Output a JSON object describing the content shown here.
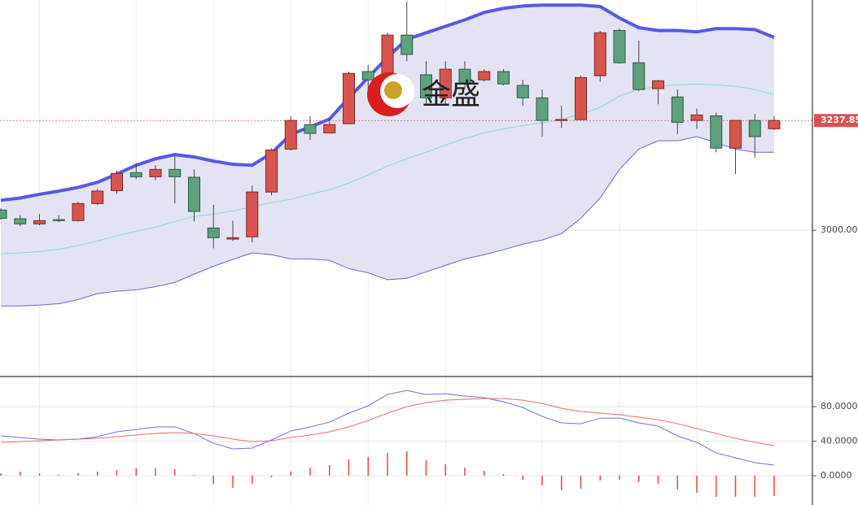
{
  "chart_data": [
    {
      "type": "candlestick",
      "watermark": "金盛",
      "ylim": [
        2685,
        3499
      ],
      "yticks": [
        {
          "value": 3000,
          "label": "3000.00"
        }
      ],
      "last_price": 3237.85,
      "grid": true,
      "up_color": "#d9534f",
      "down_color": "#5fa07e",
      "open": [
        3044,
        3025,
        3014,
        3023,
        3021,
        3058,
        3086,
        3125,
        3116,
        3132,
        3115,
        3005,
        2981,
        2986,
        3083,
        3176,
        3229,
        3211,
        3231,
        3344,
        3296,
        3423,
        3337,
        3287,
        3349,
        3326,
        3344,
        3314,
        3287,
        3238,
        3240,
        3335,
        3433,
        3363,
        3307,
        3289,
        3238,
        3248,
        3178,
        3238,
        3220
      ],
      "high": [
        3048,
        3033,
        3035,
        3033,
        3062,
        3090,
        3129,
        3146,
        3141,
        3160,
        3132,
        3055,
        3021,
        3097,
        3178,
        3247,
        3247,
        3243,
        3344,
        3358,
        3428,
        3495,
        3366,
        3366,
        3366,
        3349,
        3349,
        3326,
        3305,
        3270,
        3335,
        3432,
        3437,
        3411,
        3326,
        3305,
        3264,
        3255,
        3238,
        3252,
        3248
      ],
      "low": [
        3023,
        3009,
        3011,
        3018,
        3019,
        3055,
        3079,
        3111,
        3109,
        3058,
        3019,
        2961,
        2977,
        2974,
        3076,
        3173,
        3196,
        3211,
        3231,
        3305,
        3291,
        3366,
        3270,
        3273,
        3305,
        3322,
        3314,
        3270,
        3203,
        3222,
        3238,
        3322,
        3361,
        3301,
        3273,
        3208,
        3220,
        3169,
        3122,
        3157,
        3217
      ],
      "close": [
        3026,
        3014,
        3021,
        3021,
        3058,
        3085,
        3123,
        3116,
        3132,
        3116,
        3041,
        2984,
        2984,
        3083,
        3174,
        3238,
        3210,
        3229,
        3340,
        3326,
        3423,
        3381,
        3287,
        3349,
        3317,
        3344,
        3317,
        3287,
        3238,
        3240,
        3331,
        3428,
        3363,
        3305,
        3324,
        3234,
        3250,
        3178,
        3238,
        3203,
        3238
      ],
      "band_fill": "#e3e3f3",
      "bands": [
        {
          "color": "#5757e8",
          "width": 4,
          "values": [
            3065,
            3070,
            3078,
            3085,
            3093,
            3104,
            3122,
            3141,
            3155,
            3164,
            3159,
            3150,
            3143,
            3141,
            3167,
            3208,
            3224,
            3241,
            3287,
            3331,
            3375,
            3414,
            3428,
            3442,
            3456,
            3472,
            3481,
            3486,
            3488,
            3488,
            3488,
            3485,
            3460,
            3439,
            3433,
            3433,
            3430,
            3437,
            3437,
            3435,
            3418
          ]
        },
        {
          "color": "#86dccb",
          "width": 1,
          "values": [
            2949,
            2951,
            2954,
            2959,
            2967,
            2977,
            2988,
            2998,
            3007,
            3019,
            3030,
            3035,
            3042,
            3051,
            3060,
            3067,
            3078,
            3088,
            3102,
            3120,
            3139,
            3155,
            3169,
            3185,
            3199,
            3211,
            3220,
            3227,
            3233,
            3240,
            3252,
            3266,
            3291,
            3305,
            3312,
            3315,
            3317,
            3315,
            3312,
            3305,
            3294
          ]
        },
        {
          "color": "#6767e0",
          "width": 1,
          "values": [
            2836,
            2836,
            2838,
            2841,
            2850,
            2863,
            2868,
            2871,
            2878,
            2887,
            2905,
            2922,
            2937,
            2951,
            2947,
            2938,
            2938,
            2935,
            2917,
            2908,
            2893,
            2896,
            2910,
            2924,
            2938,
            2947,
            2958,
            2970,
            2979,
            2993,
            3026,
            3070,
            3132,
            3176,
            3194,
            3194,
            3203,
            3190,
            3176,
            3169,
            3169
          ]
        }
      ]
    },
    {
      "type": "line",
      "ylim": [
        -34,
        114
      ],
      "grid": true,
      "yticks": [
        {
          "value": 80,
          "label": "80.0000"
        },
        {
          "value": 40,
          "label": "40.0000"
        },
        {
          "value": 0,
          "label": "0.0000"
        }
      ],
      "series": [
        {
          "color": "#7070e0",
          "values": [
            46.1,
            44.2,
            42.4,
            41.4,
            42.4,
            45.2,
            50.8,
            53.6,
            56.5,
            56.5,
            48.9,
            37.6,
            31.1,
            32.0,
            41.4,
            51.8,
            56.5,
            62.1,
            72.5,
            80.9,
            94.1,
            98.8,
            94.1,
            95.0,
            92.2,
            90.4,
            85.6,
            79.0,
            68.7,
            61.2,
            60.2,
            66.8,
            66.8,
            61.2,
            57.4,
            46.1,
            38.6,
            26.4,
            20.7,
            15.1,
            12.2
          ]
        },
        {
          "color": "#e86a6a",
          "values": [
            38.6,
            39.5,
            40.5,
            41.4,
            42.4,
            43.3,
            45.2,
            47.1,
            48.9,
            49.9,
            48.9,
            46.1,
            42.4,
            39.5,
            40.5,
            44.2,
            47.1,
            50.8,
            56.5,
            64.0,
            72.5,
            80.0,
            84.7,
            87.5,
            88.5,
            89.4,
            89.4,
            87.5,
            83.7,
            78.1,
            74.3,
            72.5,
            70.6,
            67.8,
            64.9,
            60.2,
            54.6,
            48.9,
            43.3,
            38.6,
            34.8
          ]
        }
      ],
      "bars": {
        "color": "#e8473f",
        "values": [
          2.8,
          4.7,
          2.8,
          0.9,
          2.8,
          4.7,
          6.6,
          8.5,
          8.5,
          7.5,
          0.9,
          -9.4,
          -14.1,
          -9.4,
          -1.9,
          4.7,
          9.4,
          12.2,
          18.8,
          21.6,
          26.3,
          28.2,
          17.9,
          13.2,
          9.4,
          5.6,
          1.9,
          -4.7,
          -11.3,
          -16.9,
          -15.1,
          -5.6,
          -4.7,
          -7.5,
          -9.4,
          -16.0,
          -19.8,
          -24.5,
          -24.5,
          -24.5,
          -23.5
        ]
      }
    }
  ]
}
